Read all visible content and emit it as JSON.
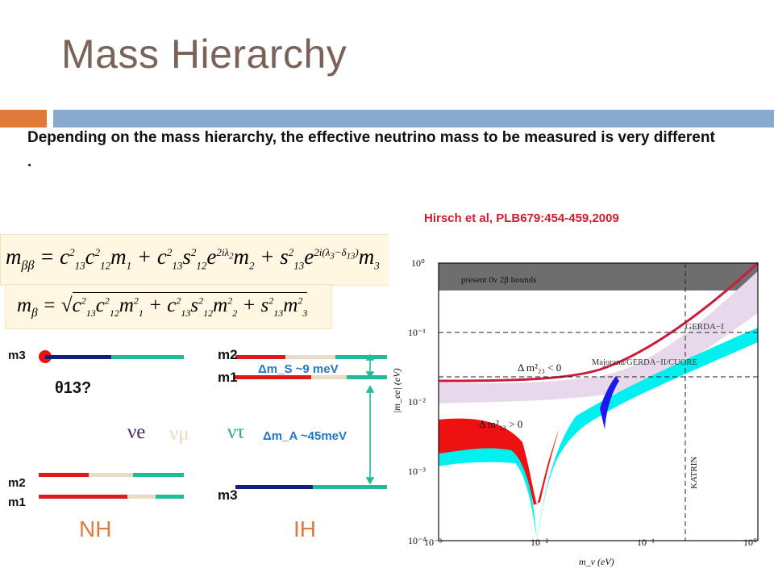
{
  "slide": {
    "title": "Mass Hierarchy",
    "intro": "Depending on the mass hierarchy, the effective neutrino mass to be measured is very different .",
    "citation": "Hirsch et al, PLB679:454-459,2009"
  },
  "colors": {
    "title": "#7a6258",
    "accent_orange": "#e07a3a",
    "accent_blue": "#8aa9cf",
    "citation": "#cc1e2e",
    "delta_labels": "#2277c8",
    "hierarchy_labels": "#e07a3a"
  },
  "equations": {
    "m_bb": "m_ββ = c²₁₃c²₁₂m₁ + c²₁₃s²₁₂e^{2iλ₂}m₂ + s²₁₃e^{2i(λ₃−δ₁₃)}m₃",
    "m_b": "m_β = √(c²₁₃c²₁₂m²₁ + c²₁₃s²₁₂m²₂ + s²₁₃m²₃)"
  },
  "levels": {
    "nh": {
      "m3": "m3",
      "m2": "m2",
      "m1": "m1",
      "label": "NH"
    },
    "ih": {
      "m2": "m2",
      "m1": "m1",
      "m3": "m3",
      "label": "IH"
    },
    "theta13": "θ13?",
    "flavors": {
      "e": "νe",
      "mu": "νμ",
      "tau": "ντ"
    },
    "dm_solar": "Δm_S ~9 meV",
    "dm_atm": "Δm_A ~45meV"
  },
  "plot": {
    "x_axis_label": "m_ν (eV)",
    "y_axis_label": "|m_ee| (eV)",
    "x_ticks": [
      "10⁻³",
      "10⁻²",
      "10⁻¹",
      "10⁰"
    ],
    "y_ticks": [
      "10⁰",
      "10⁻¹",
      "10⁻²",
      "10⁻³",
      "10⁻⁴"
    ],
    "band_text": "present 0ν 2β bounds",
    "gerda": "GERDA−I",
    "majorana": "Majorana/GERDA−II/CUORE",
    "ih_label": "Δ m²₂₃ < 0",
    "nh_label": "Δ m²₂₃ > 0",
    "katrin": "KATRIN"
  }
}
